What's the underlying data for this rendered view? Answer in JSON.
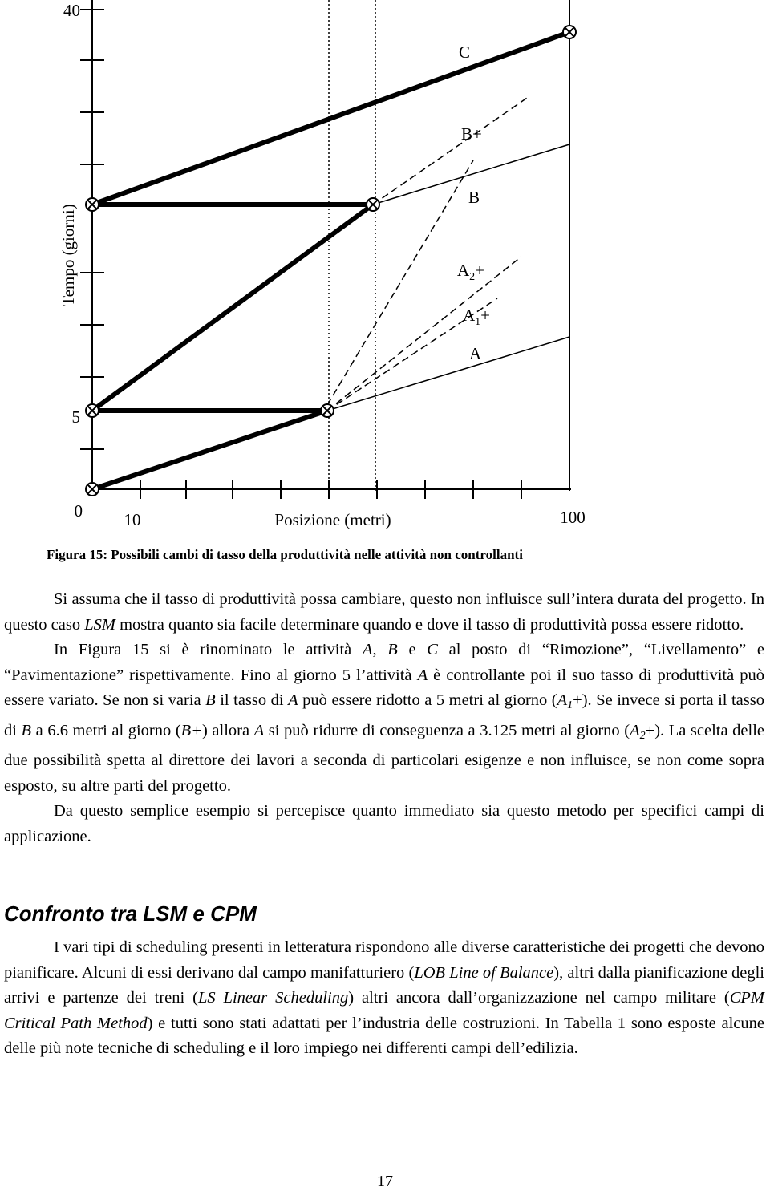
{
  "figure": {
    "y_axis_label": "Tempo (giorni)",
    "x_axis_label": "Posizione (metri)",
    "y_tick_labels": [
      "40",
      "5",
      "0"
    ],
    "x_tick_labels": [
      "10",
      "100"
    ],
    "line_labels": [
      [
        "C"
      ],
      [
        "B+"
      ],
      [
        "B"
      ],
      [
        "A",
        "2",
        "+"
      ],
      [
        "A",
        "1",
        "+"
      ],
      [
        "A"
      ]
    ]
  },
  "caption": "Figura 15: Possibili cambi di tasso della produttività nelle attività non controllanti",
  "paragraphs": [
    [
      "Si assuma che il tasso di produttività possa cambiare, questo non influisce sull’intera durata del progetto. In questo caso ",
      "LSM",
      " mostra quanto sia facile determinare quando e dove il tasso di produttività possa essere ridotto."
    ],
    [
      "In Figura 15 si è rinominato le attività ",
      "A",
      ", ",
      "B",
      " e ",
      "C",
      " al posto di “Rimozione”, “Livellamento” e “Pavimentazione” rispettivamente. Fino al giorno 5 l’attività ",
      "A",
      " è controllante poi il suo tasso di produttività può essere variato. Se non si varia ",
      "B",
      " il tasso di ",
      "A",
      " può essere ridotto a 5 metri al giorno (",
      "A",
      "1",
      "+",
      "). Se invece si porta il tasso di ",
      "B",
      " a 6.6 metri al giorno (",
      "B+",
      ") allora ",
      "A",
      " si può ridurre di conseguenza a 3.125 metri al giorno (",
      "A",
      "2",
      "+",
      "). La scelta delle due possibilità spetta al direttore dei lavori a seconda di particolari esigenze e non influisce, se non come sopra esposto, su altre parti del progetto."
    ],
    [
      "Da questo semplice esempio si percepisce quanto immediato sia questo metodo per specifici campi di applicazione."
    ]
  ],
  "heading": "Confronto tra LSM e CPM",
  "paragraphs2": [
    [
      "I vari tipi di scheduling presenti in letteratura rispondono alle diverse caratteristiche dei progetti che devono pianificare. Alcuni di essi derivano dal campo manifatturiero (",
      "LOB Line of Balance",
      "), altri dalla pianificazione degli arrivi e partenze dei treni (",
      "LS Linear Scheduling",
      ") altri ancora dall’organizzazione nel campo militare (",
      "CPM Critical Path Method",
      ") e tutti sono stati adattati per l’industria delle costruzioni. In Tabella 1 sono esposte alcune delle più note tecniche di scheduling e il loro impiego nei differenti campi dell’edilizia."
    ]
  ],
  "page_number": "17"
}
